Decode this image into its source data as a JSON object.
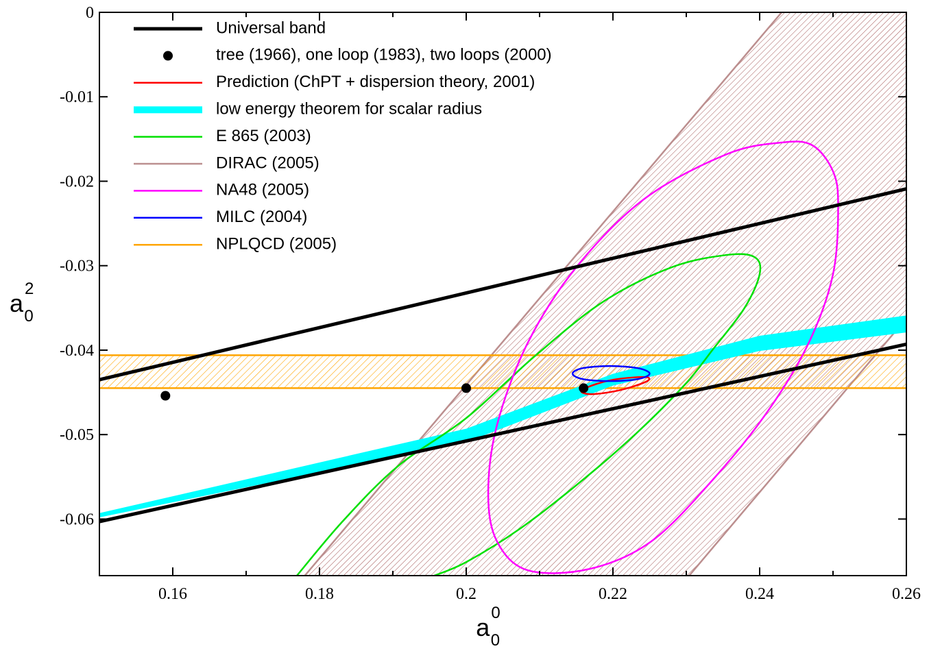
{
  "chart_data": {
    "type": "curves",
    "x_label": {
      "base": "a",
      "sub": "0",
      "sup": "0"
    },
    "y_label": {
      "base": "a",
      "sub": "0",
      "sup": "2"
    },
    "xlim": [
      0.15,
      0.26
    ],
    "ylim": [
      -0.0667,
      0
    ],
    "xticks": [
      0.16,
      0.18,
      0.2,
      0.22,
      0.24,
      0.26
    ],
    "xminorticks": [
      0.17,
      0.19,
      0.21,
      0.23,
      0.25
    ],
    "yticks": [
      0,
      -0.01,
      -0.02,
      -0.03,
      -0.04,
      -0.05,
      -0.06
    ],
    "legend": "upper left",
    "series": [
      {
        "name": "Universal band",
        "color": "#000000",
        "kind": "lines",
        "edges": [
          {
            "x": [
              0.15,
              0.26
            ],
            "y": [
              -0.0435,
              -0.0209
            ]
          },
          {
            "x": [
              0.15,
              0.26
            ],
            "y": [
              -0.0603,
              -0.0393
            ]
          }
        ]
      },
      {
        "name": "tree (1966), one loop (1983), two loops (2000)",
        "color": "#000000",
        "kind": "points",
        "x": [
          0.159,
          0.2,
          0.216
        ],
        "y": [
          -0.0454,
          -0.0445,
          -0.0445
        ]
      },
      {
        "name": "Prediction (ChPT + dispersion theory, 2001)",
        "color": "#ff0000",
        "kind": "closed_curve",
        "x": [
          0.2157,
          0.2178,
          0.2206,
          0.2243,
          0.2248,
          0.2224,
          0.2196,
          0.2168
        ],
        "y": [
          -0.0448,
          -0.04399,
          -0.04343,
          -0.04318,
          -0.04359,
          -0.0444,
          -0.04497,
          -0.04521
        ]
      },
      {
        "name": "low energy theorem for scalar radius",
        "color": "#00ffff",
        "kind": "area",
        "x": [
          0.15,
          0.2,
          0.22,
          0.24,
          0.26
        ],
        "y_low": [
          -0.0598,
          -0.0509,
          -0.0442,
          -0.0401,
          -0.0379
        ],
        "y_high": [
          -0.0593,
          -0.0493,
          -0.0428,
          -0.0383,
          -0.0359
        ]
      },
      {
        "name": "E 865 (2003)",
        "color": "#00e000",
        "kind": "curve",
        "x": [
          0.1769,
          0.1832,
          0.1907,
          0.2,
          0.2093,
          0.2187,
          0.228,
          0.2355,
          0.2393,
          0.24,
          0.2379,
          0.2336,
          0.2299,
          0.2234,
          0.2159,
          0.2075,
          0.2,
          0.1956
        ],
        "y": [
          -0.06672,
          -0.06023,
          -0.05373,
          -0.04805,
          -0.04075,
          -0.03425,
          -0.03019,
          -0.02873,
          -0.02898,
          -0.03101,
          -0.03506,
          -0.03994,
          -0.04399,
          -0.04968,
          -0.05536,
          -0.06104,
          -0.0651,
          -0.06672
        ]
      },
      {
        "name": "DIRAC (2005)",
        "color": "#bc8f8f",
        "kind": "hatched_slant_band",
        "edges": [
          {
            "x": [
              0.178,
              0.243
            ],
            "y": [
              -0.0667,
              0
            ]
          },
          {
            "x": [
              0.2304,
              0.2952
            ],
            "y": [
              -0.0667,
              0
            ]
          }
        ]
      },
      {
        "name": "NA48 (2005)",
        "color": "#ff00ff",
        "kind": "closed_curve",
        "x": [
          0.2472,
          0.25,
          0.2507,
          0.25,
          0.2467,
          0.2411,
          0.2336,
          0.2252,
          0.2168,
          0.2084,
          0.2042,
          0.203,
          0.2042,
          0.2084,
          0.215,
          0.2243,
          0.2355,
          0.243
        ],
        "y": [
          -0.01575,
          -0.01883,
          -0.02289,
          -0.03101,
          -0.03912,
          -0.04724,
          -0.05536,
          -0.06266,
          -0.06591,
          -0.06607,
          -0.06266,
          -0.05698,
          -0.04886,
          -0.03912,
          -0.03019,
          -0.02208,
          -0.0168,
          -0.01542
        ]
      },
      {
        "name": "MILC (2004)",
        "color": "#0000ff",
        "kind": "closed_curve",
        "x": [
          0.2145,
          0.2159,
          0.2196,
          0.2234,
          0.225,
          0.2234,
          0.2196,
          0.2159
        ],
        "y": [
          -0.04278,
          -0.04213,
          -0.04188,
          -0.04213,
          -0.04278,
          -0.04343,
          -0.04367,
          -0.04343
        ]
      },
      {
        "name": "NPLQCD (2005)",
        "color": "#ffa500",
        "kind": "hatched_flat_band",
        "y_low": -0.0445,
        "y_high": -0.0406
      }
    ]
  }
}
